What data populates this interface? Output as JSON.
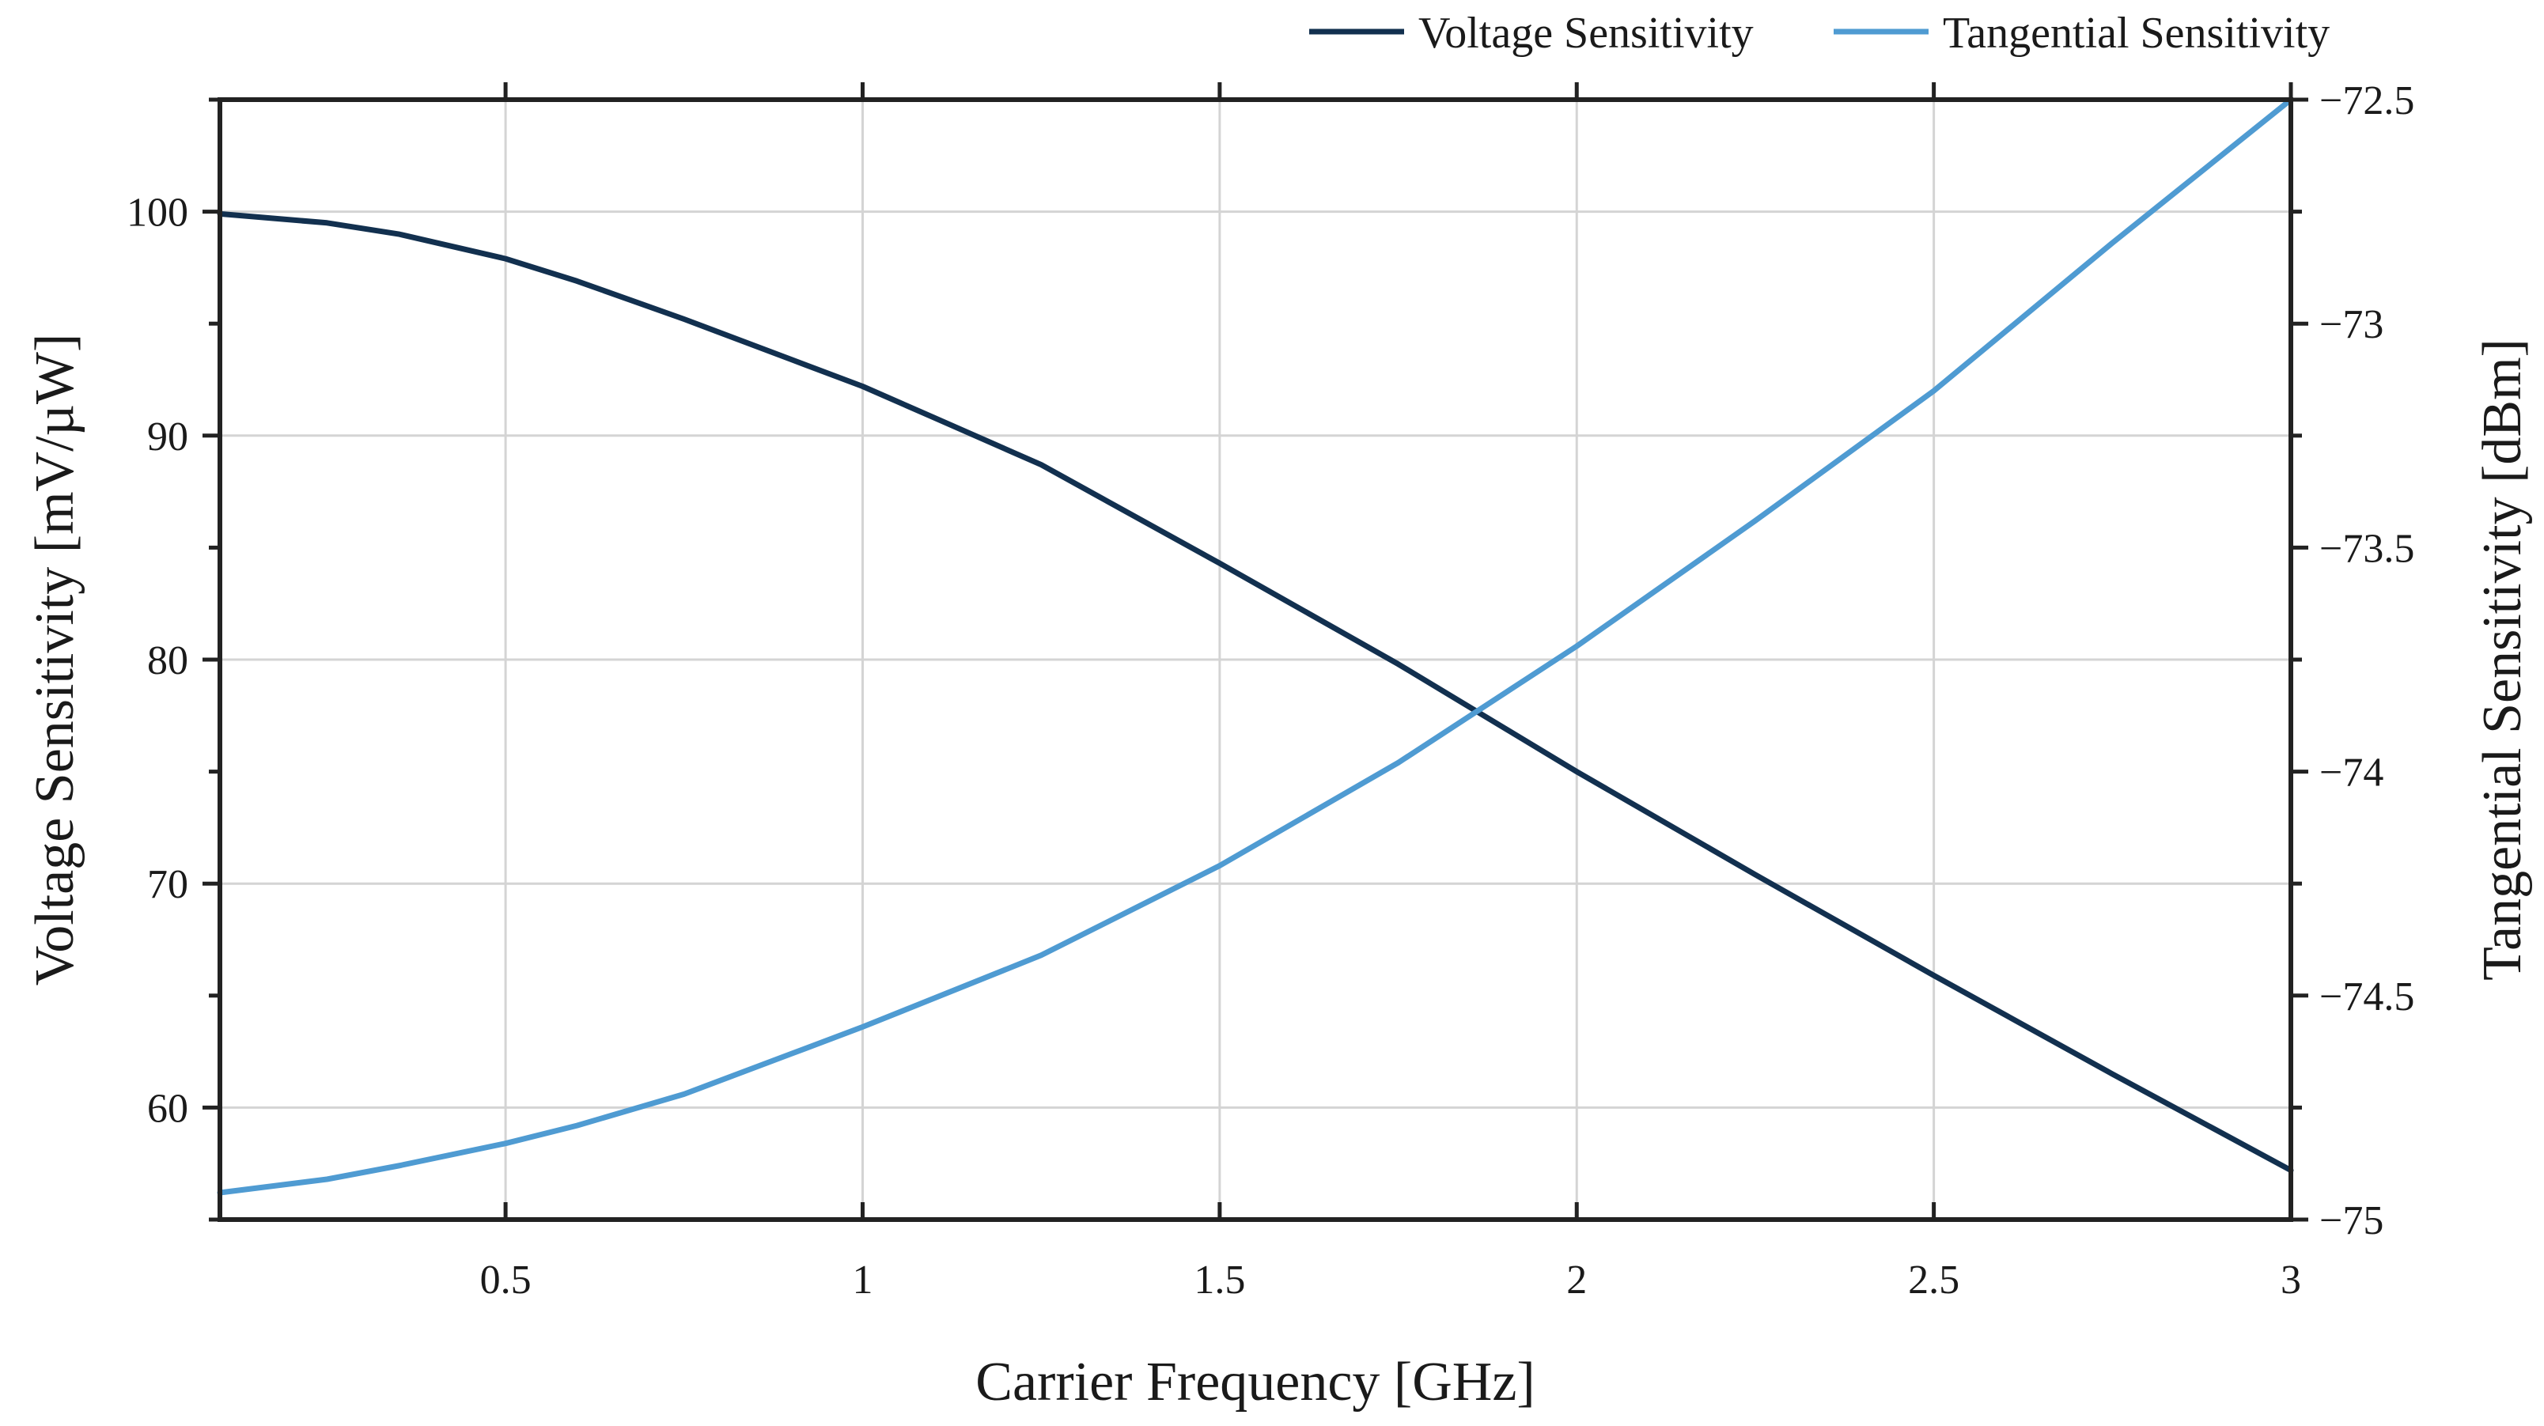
{
  "chart_data": {
    "type": "line",
    "title": "",
    "xlabel": "Carrier Frequency [GHz]",
    "ylabel": "Voltage Sensitivity [mV/µW]",
    "y2label": "Tangential Sensitivity [dBm]",
    "xlim": [
      0.1,
      3.0
    ],
    "ylim": [
      55,
      105
    ],
    "y2lim": [
      -75.0,
      -72.5
    ],
    "x_ticks": [
      0.5,
      1,
      1.5,
      2,
      2.5,
      3
    ],
    "x_tick_labels": [
      "0.5",
      "1",
      "1.5",
      "2",
      "2.5",
      "3"
    ],
    "y_ticks": [
      60,
      70,
      80,
      90,
      100
    ],
    "y_tick_labels": [
      "60",
      "70",
      "80",
      "90",
      "100"
    ],
    "y2_ticks": [
      -75,
      -74.5,
      -74,
      -73.5,
      -73,
      -72.5
    ],
    "y2_tick_labels": [
      "−75",
      "−74.5",
      "−74",
      "−73.5",
      "−73",
      "−72.5"
    ],
    "grid": true,
    "legend_position": "top-right",
    "series": [
      {
        "name": "Voltage Sensitivity",
        "axis": "left",
        "color": "#12304f",
        "x": [
          0.1,
          0.25,
          0.35,
          0.5,
          0.6,
          0.75,
          0.9,
          1.0,
          1.1,
          1.25,
          1.5,
          1.75,
          2.0,
          2.25,
          2.5,
          2.75,
          3.0
        ],
        "y": [
          99.9,
          99.5,
          99.0,
          97.9,
          96.9,
          95.2,
          93.4,
          92.2,
          90.8,
          88.7,
          84.3,
          79.8,
          75.0,
          70.4,
          65.9,
          61.5,
          57.2
        ]
      },
      {
        "name": "Tangential Sensitivity",
        "axis": "right",
        "color": "#4f9bd2",
        "x": [
          0.1,
          0.25,
          0.35,
          0.5,
          0.6,
          0.75,
          0.9,
          1.0,
          1.25,
          1.5,
          1.75,
          2.0,
          2.25,
          2.5,
          2.75,
          3.0
        ],
        "y": [
          -74.94,
          -74.91,
          -74.88,
          -74.83,
          -74.79,
          -74.72,
          -74.63,
          -74.57,
          -74.41,
          -74.21,
          -73.98,
          -73.72,
          -73.44,
          -73.15,
          -72.82,
          -72.5
        ]
      }
    ]
  }
}
